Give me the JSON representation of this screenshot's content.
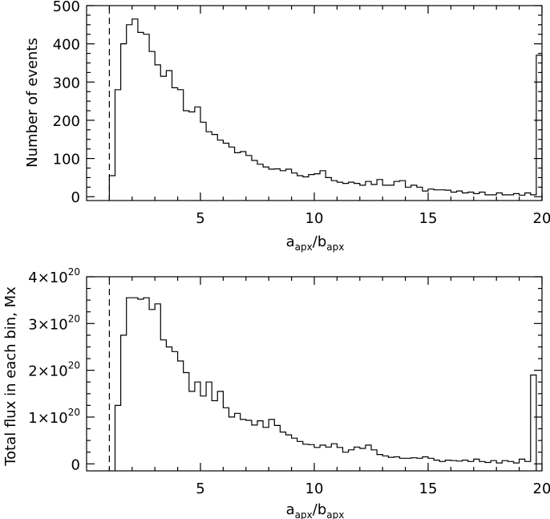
{
  "chart_data": [
    {
      "type": "histogram",
      "ylabel": "Number of events",
      "xlabel": {
        "a": "a",
        "a_sub": "apx",
        "sep": "/",
        "b": "b",
        "b_sub": "apx"
      },
      "xlim": [
        0,
        20
      ],
      "ylim": [
        -10,
        500
      ],
      "xticks": [
        5,
        10,
        15,
        20
      ],
      "yticks": [
        {
          "value": 0,
          "label": "0"
        },
        {
          "value": 100,
          "label": "100"
        },
        {
          "value": 200,
          "label": "200"
        },
        {
          "value": 300,
          "label": "300"
        },
        {
          "value": 400,
          "label": "400"
        },
        {
          "value": 500,
          "label": "500"
        }
      ],
      "reference_line_x": 1.0,
      "bin_width": 0.25,
      "edges_start": 1.0,
      "values": [
        55,
        280,
        400,
        450,
        465,
        430,
        425,
        380,
        345,
        315,
        330,
        285,
        280,
        225,
        222,
        235,
        195,
        170,
        163,
        148,
        140,
        130,
        115,
        118,
        108,
        95,
        85,
        78,
        72,
        73,
        68,
        72,
        62,
        55,
        52,
        58,
        60,
        68,
        50,
        42,
        38,
        35,
        38,
        35,
        30,
        40,
        32,
        45,
        30,
        30,
        40,
        42,
        25,
        30,
        25,
        15,
        20,
        18,
        18,
        17,
        12,
        15,
        10,
        12,
        8,
        12,
        5,
        5,
        10,
        5,
        5,
        8,
        4,
        10,
        5,
        370
      ]
    },
    {
      "type": "histogram",
      "ylabel": "Total flux in each bin, Mx",
      "xlabel": {
        "a": "a",
        "a_sub": "apx",
        "sep": "/",
        "b": "b",
        "b_sub": "apx"
      },
      "xlim": [
        0,
        20
      ],
      "ylim": [
        -0.15,
        4.0
      ],
      "xticks": [
        5,
        10,
        15,
        20
      ],
      "yticks": [
        {
          "value": 0,
          "label": "0"
        },
        {
          "value": 1,
          "mantissa": "1×10",
          "exp": "20"
        },
        {
          "value": 2,
          "mantissa": "2×10",
          "exp": "20"
        },
        {
          "value": 3,
          "mantissa": "3×10",
          "exp": "20"
        },
        {
          "value": 4,
          "mantissa": "4×10",
          "exp": "20"
        }
      ],
      "y_multiplier": "1e20",
      "reference_line_x": 1.0,
      "bin_width": 0.25,
      "edges_start": 1.25,
      "values": [
        1.25,
        2.75,
        3.55,
        3.55,
        3.52,
        3.55,
        3.3,
        3.42,
        2.65,
        2.5,
        2.4,
        2.2,
        1.95,
        1.55,
        1.75,
        1.45,
        1.75,
        1.35,
        1.55,
        1.2,
        1.0,
        1.08,
        0.95,
        0.93,
        0.83,
        0.92,
        0.78,
        0.95,
        0.82,
        0.68,
        0.62,
        0.55,
        0.48,
        0.42,
        0.41,
        0.35,
        0.4,
        0.36,
        0.43,
        0.35,
        0.25,
        0.3,
        0.36,
        0.33,
        0.4,
        0.3,
        0.2,
        0.17,
        0.14,
        0.15,
        0.12,
        0.12,
        0.13,
        0.12,
        0.15,
        0.12,
        0.08,
        0.05,
        0.08,
        0.07,
        0.06,
        0.08,
        0.05,
        0.1,
        0.05,
        0.03,
        0.07,
        0.02,
        0.07,
        0.05,
        0.02,
        0.1,
        0.05,
        1.9
      ]
    }
  ]
}
